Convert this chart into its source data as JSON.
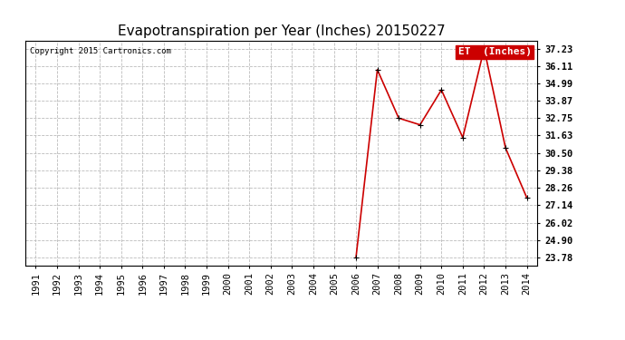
{
  "title": "Evapotranspiration per Year (Inches) 20150227",
  "copyright": "Copyright 2015 Cartronics.com",
  "legend_label": "ET  (Inches)",
  "years": [
    1991,
    1992,
    1993,
    1994,
    1995,
    1996,
    1997,
    1998,
    1999,
    2000,
    2001,
    2002,
    2003,
    2004,
    2005,
    2006,
    2007,
    2008,
    2009,
    2010,
    2011,
    2012,
    2013,
    2014
  ],
  "values": [
    null,
    null,
    null,
    null,
    null,
    null,
    null,
    null,
    null,
    null,
    null,
    null,
    null,
    null,
    null,
    23.78,
    35.87,
    32.75,
    32.32,
    34.57,
    31.5,
    37.23,
    30.84,
    27.62
  ],
  "line_color": "#cc0000",
  "marker": "+",
  "ylim_min": 23.28,
  "ylim_max": 37.73,
  "yticks": [
    23.78,
    24.9,
    26.02,
    27.14,
    28.26,
    29.38,
    30.5,
    31.63,
    32.75,
    33.87,
    34.99,
    36.11,
    37.23
  ],
  "bg_color": "#ffffff",
  "grid_color": "#bbbbbb",
  "title_fontsize": 11,
  "tick_fontsize": 7.5,
  "copyright_fontsize": 6.5,
  "legend_bg": "#cc0000",
  "legend_text_color": "#ffffff",
  "legend_fontsize": 8
}
